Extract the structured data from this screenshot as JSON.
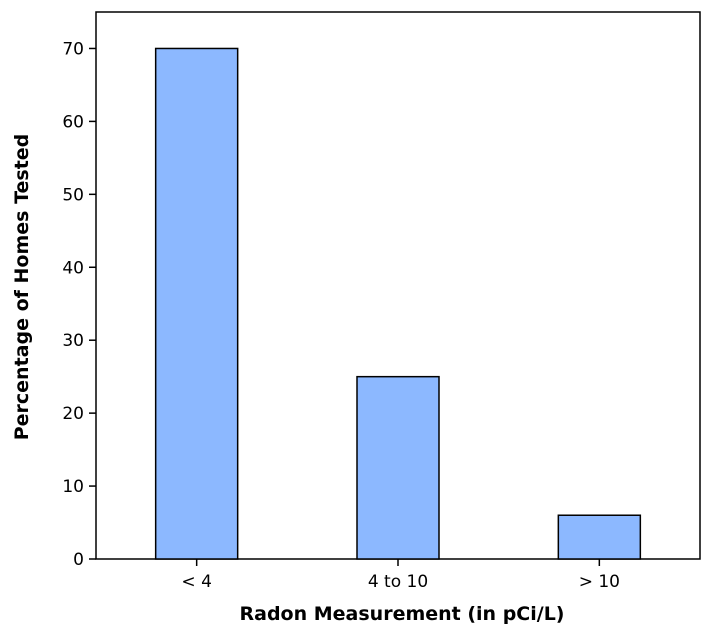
{
  "chart_data": {
    "type": "bar",
    "categories": [
      "< 4",
      "4 to 10",
      "> 10"
    ],
    "values": [
      70,
      25,
      6
    ],
    "title": "",
    "xlabel": "Radon Measurement (in pCi/L)",
    "ylabel": "Percentage of Homes Tested",
    "ylim": [
      0,
      75
    ],
    "yticks": [
      0,
      10,
      20,
      30,
      40,
      50,
      60,
      70
    ],
    "grid": false,
    "legend": "none",
    "colors": {
      "bar_fill": "#8cb8ff",
      "bar_stroke": "#000000",
      "axis": "#000000",
      "background": "#ffffff"
    }
  }
}
